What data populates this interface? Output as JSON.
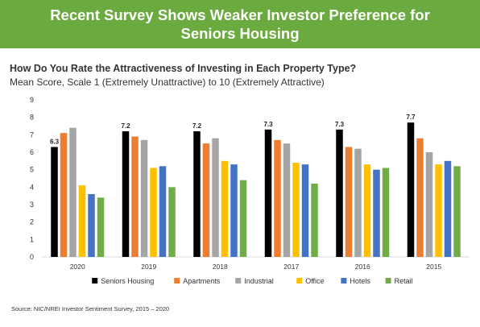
{
  "banner": {
    "title": "Recent Survey Shows Weaker Investor Preference for Seniors Housing"
  },
  "chart_data": {
    "type": "bar",
    "title": "How Do You Rate the Attractiveness of Investing in Each Property Type?",
    "subtitle": "Mean Score, Scale 1 (Extremely Unattractive) to 10 (Extremely Attractive)",
    "categories": [
      "2020",
      "2019",
      "2018",
      "2017",
      "2016",
      "2015"
    ],
    "ylim": [
      0,
      9
    ],
    "yticks": [
      "0",
      "1",
      "2",
      "3",
      "4",
      "5",
      "6",
      "7",
      "8",
      "9"
    ],
    "grid": false,
    "legend_position": "bottom",
    "series": [
      {
        "name": "Seniors Housing",
        "color": "#000000",
        "values": [
          6.3,
          7.2,
          7.2,
          7.3,
          7.3,
          7.7
        ],
        "labels": [
          "6.3",
          "7.2",
          "7.2",
          "7.3",
          "7.3",
          "7.7"
        ]
      },
      {
        "name": "Apartments",
        "color": "#ed7d31",
        "values": [
          7.1,
          6.9,
          6.5,
          6.7,
          6.3,
          6.8
        ]
      },
      {
        "name": "Industrial",
        "color": "#a5a5a5",
        "values": [
          7.4,
          6.7,
          6.8,
          6.5,
          6.2,
          6.0
        ]
      },
      {
        "name": "Office",
        "color": "#ffc000",
        "values": [
          4.1,
          5.1,
          5.5,
          5.4,
          5.3,
          5.3
        ]
      },
      {
        "name": "Hotels",
        "color": "#4472c4",
        "values": [
          3.6,
          5.2,
          5.3,
          5.3,
          5.0,
          5.5
        ]
      },
      {
        "name": "Retail",
        "color": "#70ad47",
        "values": [
          3.4,
          4.0,
          4.4,
          4.2,
          5.1,
          5.2
        ]
      }
    ]
  },
  "footer": {
    "source": "Source: NIC/NREI Investor Sentiment Survey, 2015 – 2020"
  }
}
